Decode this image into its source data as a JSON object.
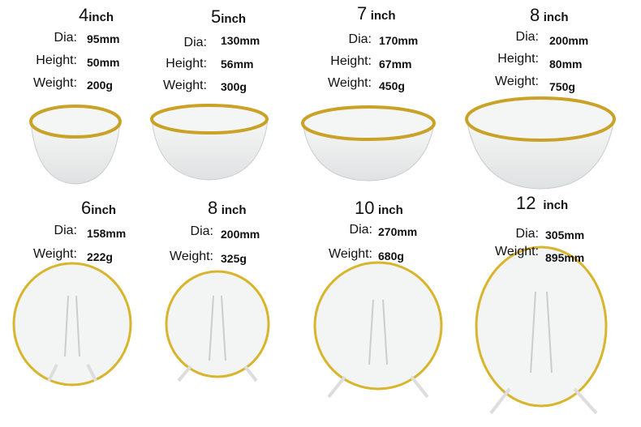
{
  "bowls": [
    {
      "size": "4",
      "unit": "inch",
      "dia_label": "Dia:",
      "dia": "95mm",
      "height_label": "Height:",
      "height": "50mm",
      "weight_label": "Weight:",
      "weight": "200g"
    },
    {
      "size": "5",
      "unit": "inch",
      "dia_label": "Dia:",
      "dia": "130mm",
      "height_label": "Height:",
      "height": "56mm",
      "weight_label": "Weight:",
      "weight": "300g"
    },
    {
      "size": "7",
      "unit": "inch",
      "dia_label": "Dia:",
      "dia": "170mm",
      "height_label": "Height:",
      "height": "67mm",
      "weight_label": "Weight:",
      "weight": "450g"
    },
    {
      "size": "8",
      "unit": "inch",
      "dia_label": "Dia:",
      "dia": "200mm",
      "height_label": "Height:",
      "height": "80mm",
      "weight_label": "Weight:",
      "weight": "750g"
    }
  ],
  "plates": [
    {
      "size": "6",
      "unit": "inch",
      "dia_label": "Dia:",
      "dia": "158mm",
      "weight_label": "Weight:",
      "weight": "222g"
    },
    {
      "size": "8",
      "unit": "inch",
      "dia_label": "Dia:",
      "dia": "200mm",
      "weight_label": "Weight:",
      "weight": "325g"
    },
    {
      "size": "10",
      "unit": "inch",
      "dia_label": "Dia:",
      "dia": "270mm",
      "weight_label": "Weight:",
      "weight": "680g"
    },
    {
      "size": "12",
      "unit": "inch",
      "dia_label": "Dia:",
      "dia": "305mm",
      "weight_label": "Weight:",
      "weight": "895mm"
    }
  ],
  "colors": {
    "rim_gold": "#c9a227",
    "glass": "#eef0f0"
  }
}
